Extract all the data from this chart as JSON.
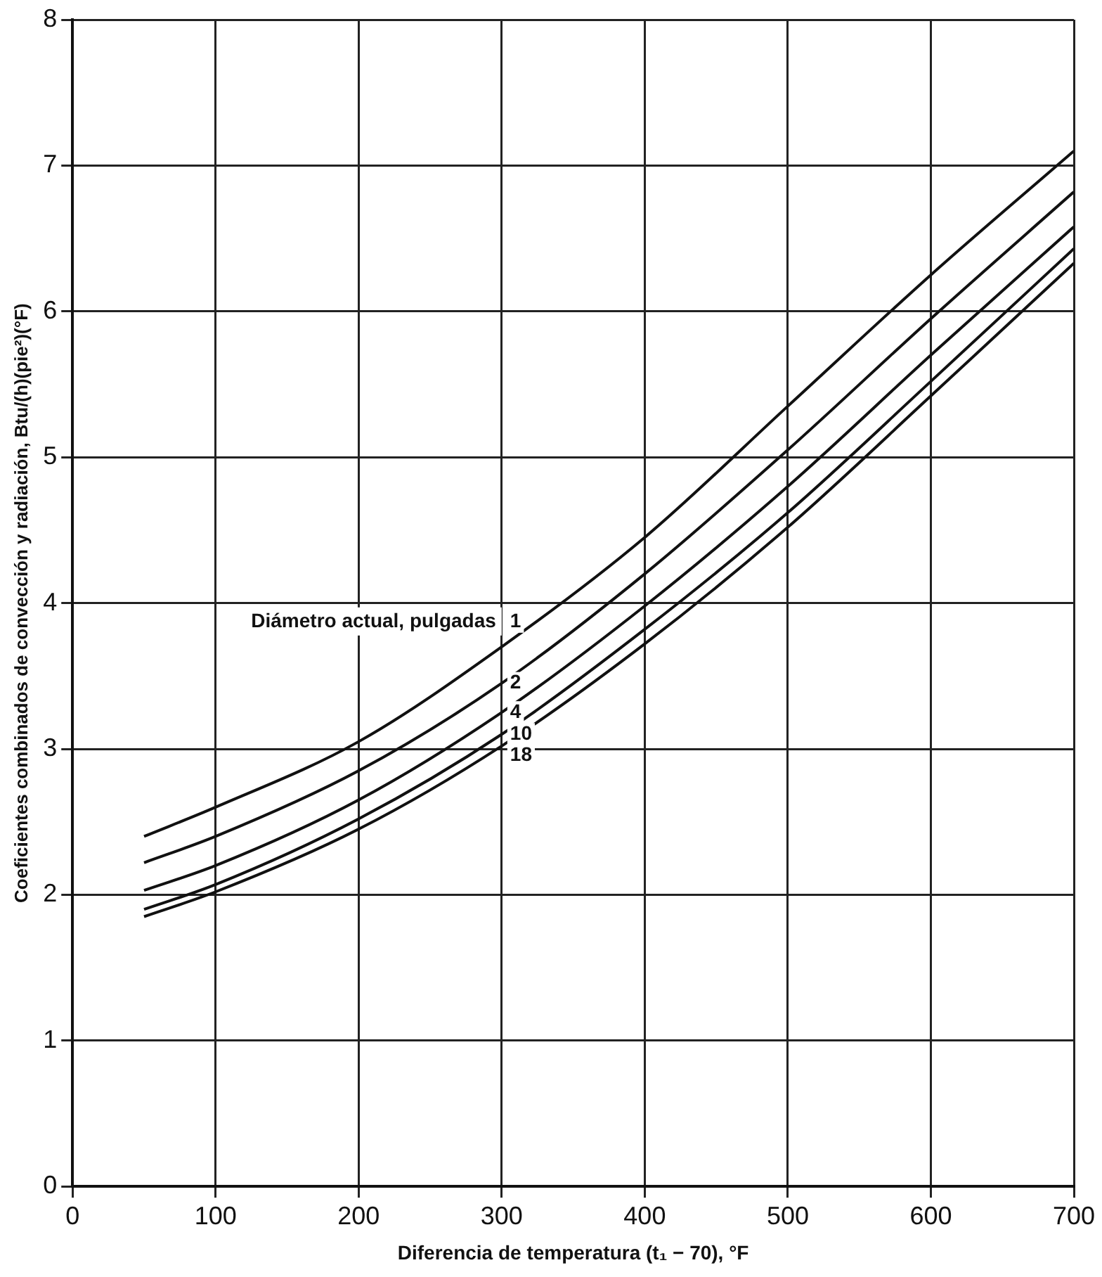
{
  "chart_data": {
    "type": "line",
    "xlabel": "Diferencia de temperatura (t₁ − 70), °F",
    "ylabel": "Coeficientes combinados de convección y radiación, Btu/(h)(pie²)(°F)",
    "legend_title": "Diámetro actual, pulgadas",
    "x": [
      50,
      100,
      200,
      300,
      400,
      500,
      600,
      700
    ],
    "series": [
      {
        "name": "1",
        "color": "#111111",
        "values": [
          2.4,
          2.6,
          3.05,
          3.7,
          4.45,
          5.35,
          6.25,
          7.1
        ]
      },
      {
        "name": "2",
        "color": "#111111",
        "values": [
          2.22,
          2.4,
          2.85,
          3.45,
          4.2,
          5.05,
          5.95,
          6.82
        ]
      },
      {
        "name": "4",
        "color": "#111111",
        "values": [
          2.03,
          2.2,
          2.65,
          3.25,
          3.98,
          4.8,
          5.7,
          6.58
        ]
      },
      {
        "name": "10",
        "color": "#111111",
        "values": [
          1.9,
          2.07,
          2.52,
          3.1,
          3.82,
          4.62,
          5.52,
          6.43
        ]
      },
      {
        "name": "18",
        "color": "#111111",
        "values": [
          1.85,
          2.02,
          2.45,
          3.02,
          3.72,
          4.52,
          5.42,
          6.33
        ]
      }
    ],
    "xlim": [
      0,
      700
    ],
    "xticks": [
      0,
      100,
      200,
      300,
      400,
      500,
      600,
      700
    ],
    "ylim": [
      0,
      8
    ],
    "yticks": [
      0,
      1,
      2,
      3,
      4,
      5,
      6,
      7,
      8
    ],
    "grid": true,
    "legend": false,
    "marker": "none",
    "line_style": "solid"
  }
}
